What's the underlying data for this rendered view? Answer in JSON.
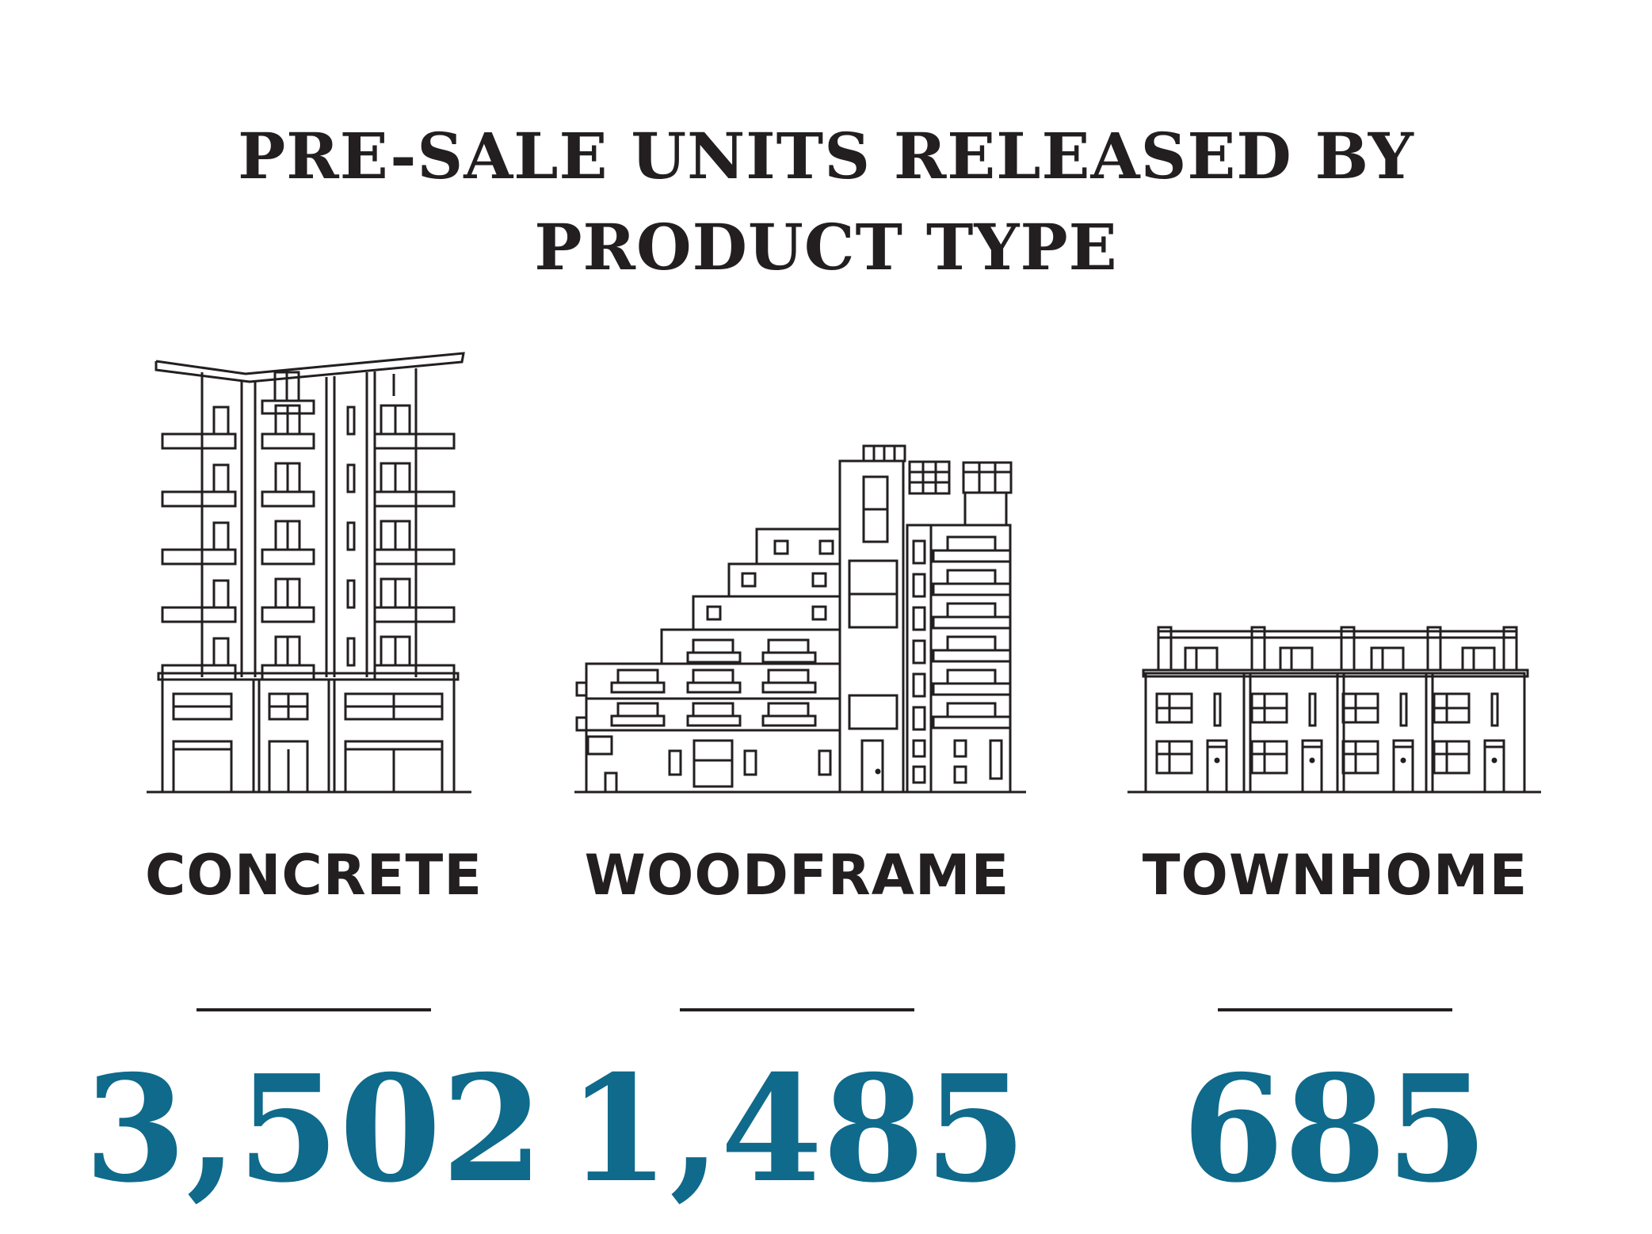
{
  "title_line1": "PRE-SALE UNITS RELEASED BY",
  "title_line2": "PRODUCT TYPE",
  "accent_color": "#0f6a8b",
  "text_color": "#231f20",
  "categories": [
    {
      "icon": "concrete-highrise-icon",
      "label": "CONCRETE",
      "value": "3,502"
    },
    {
      "icon": "woodframe-midrise-icon",
      "label": "WOODFRAME",
      "value": "1,485"
    },
    {
      "icon": "townhome-row-icon",
      "label": "TOWNHOME",
      "value": "685"
    }
  ]
}
